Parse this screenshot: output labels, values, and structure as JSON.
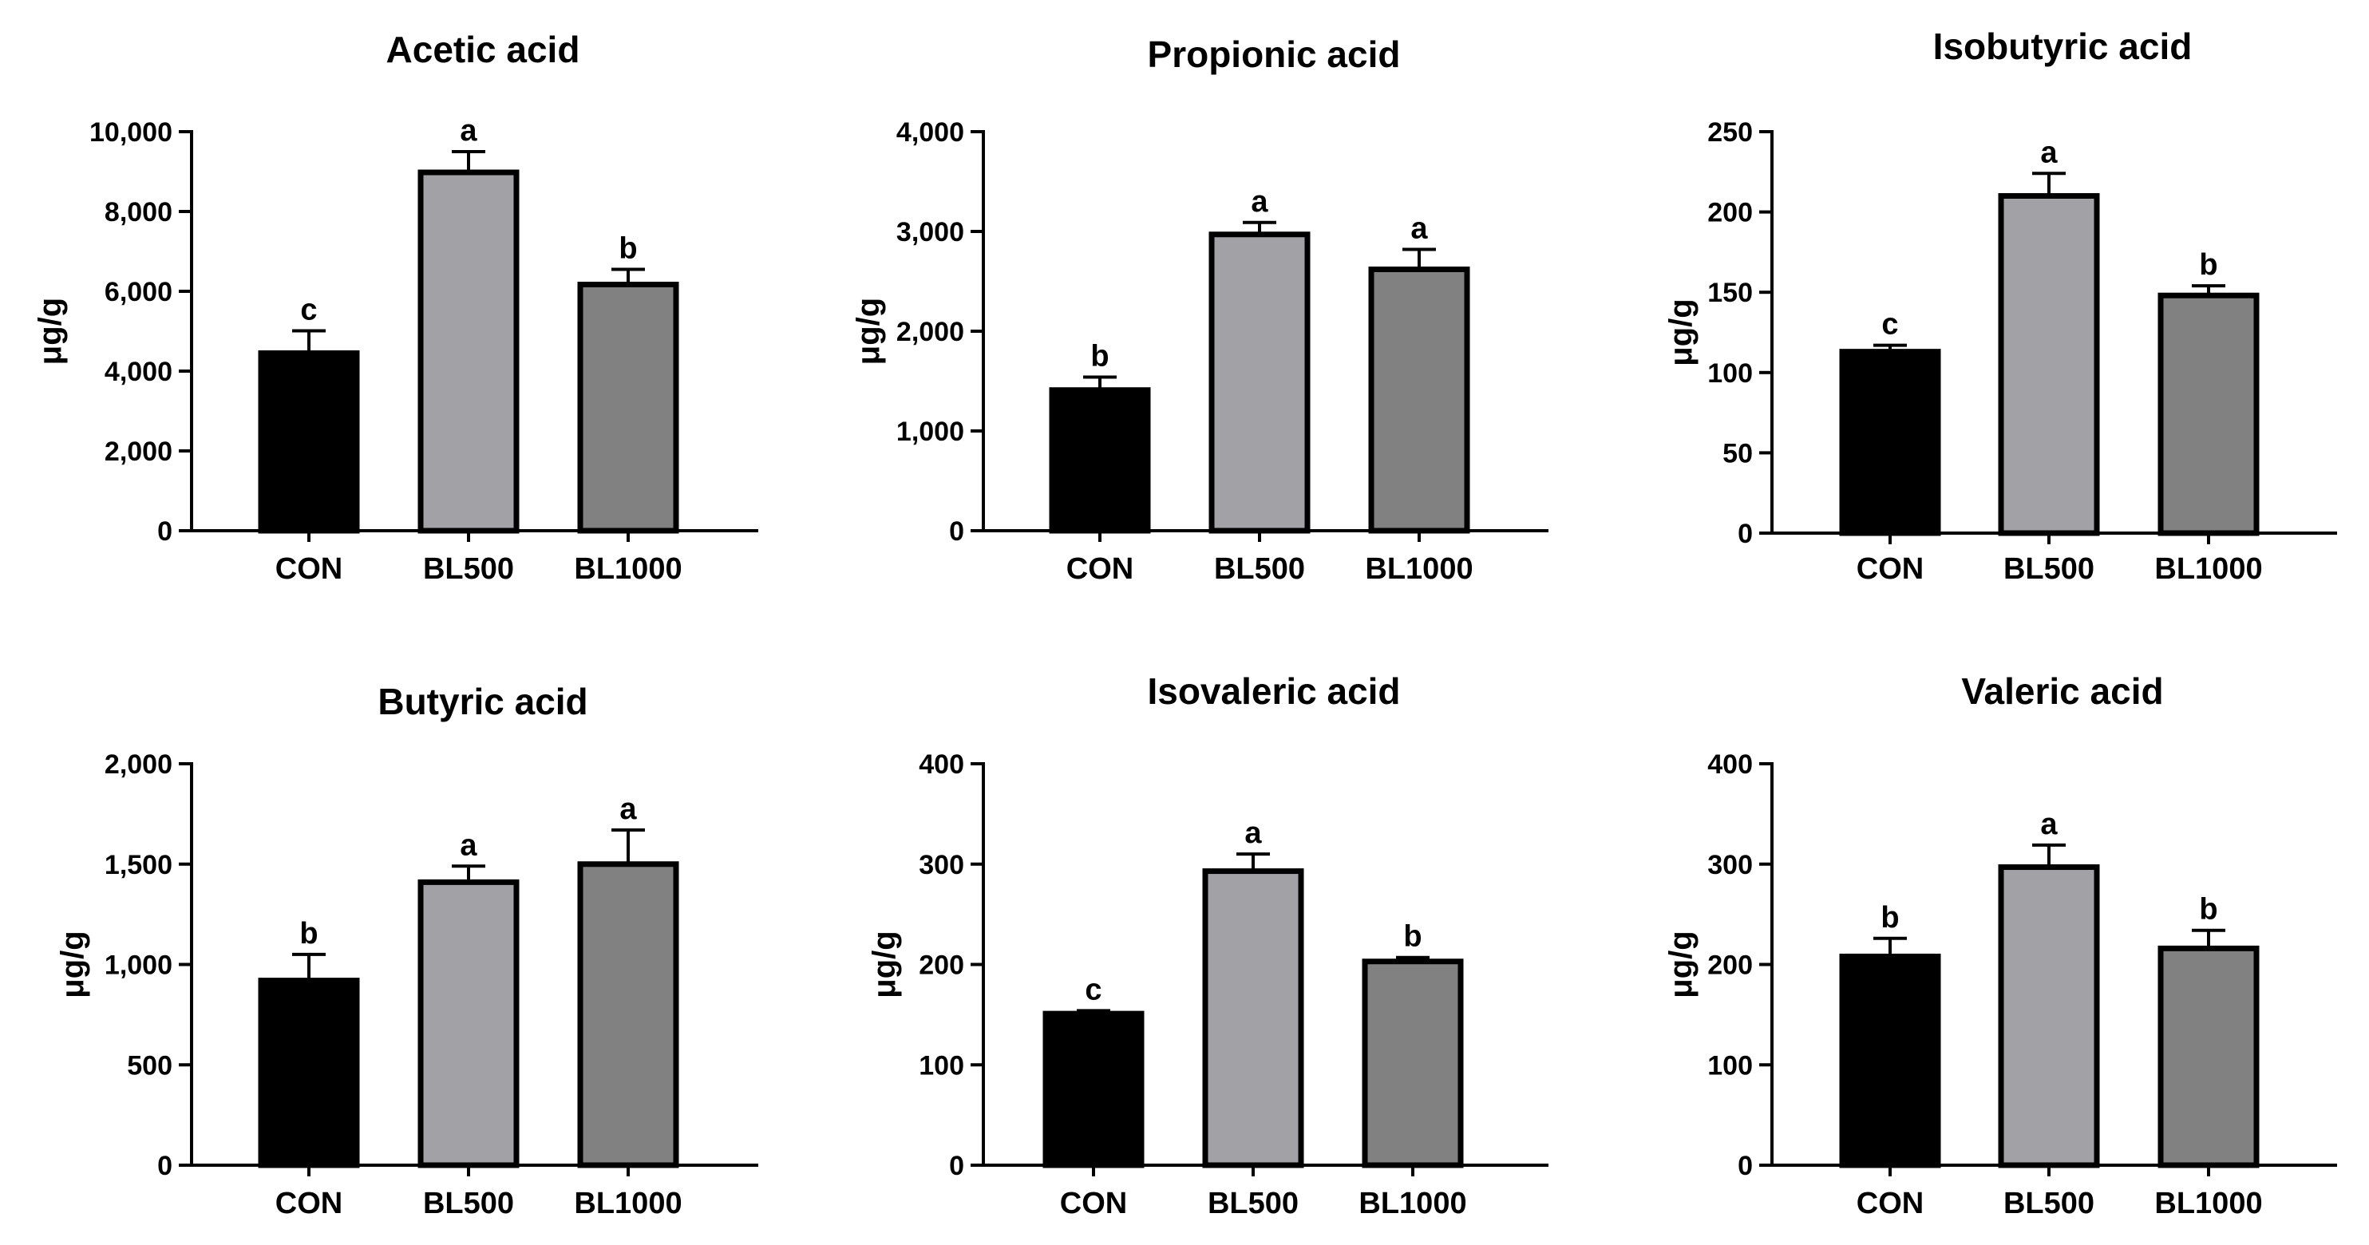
{
  "chart_data": [
    {
      "type": "bar",
      "title": "Acetic acid",
      "ylabel": "μg/g",
      "categories": [
        "CON",
        "BL500",
        "BL1000"
      ],
      "values": [
        4450,
        8980,
        6170
      ],
      "errors": [
        560,
        520,
        380
      ],
      "significance": [
        "c",
        "a",
        "b"
      ],
      "ylim": [
        0,
        10000
      ],
      "yticks": [
        0,
        2000,
        4000,
        6000,
        8000,
        10000
      ],
      "ytick_labels": [
        "0",
        "2,000",
        "4,000",
        "6,000",
        "8,000",
        "10,000"
      ],
      "bar_colors": [
        "#000000",
        "#a2a1a6",
        "#818181"
      ]
    },
    {
      "type": "bar",
      "title": "Propionic acid",
      "ylabel": "μg/g",
      "categories": [
        "CON",
        "BL500",
        "BL1000"
      ],
      "values": [
        1410,
        2970,
        2620
      ],
      "errors": [
        130,
        120,
        200
      ],
      "significance": [
        "b",
        "a",
        "a"
      ],
      "ylim": [
        0,
        4000
      ],
      "yticks": [
        0,
        1000,
        2000,
        3000,
        4000
      ],
      "ytick_labels": [
        "0",
        "1,000",
        "2,000",
        "3,000",
        "4,000"
      ],
      "bar_colors": [
        "#000000",
        "#a2a1a6",
        "#818181"
      ]
    },
    {
      "type": "bar",
      "title": "Isobutyric acid",
      "ylabel": "μg/g",
      "categories": [
        "CON",
        "BL500",
        "BL1000"
      ],
      "values": [
        113,
        210,
        148
      ],
      "errors": [
        4,
        14,
        6
      ],
      "significance": [
        "c",
        "a",
        "b"
      ],
      "ylim": [
        0,
        250
      ],
      "yticks": [
        0,
        50,
        100,
        150,
        200,
        250
      ],
      "ytick_labels": [
        "0",
        "50",
        "100",
        "150",
        "200",
        "250"
      ],
      "bar_colors": [
        "#000000",
        "#a2a1a6",
        "#818181"
      ]
    },
    {
      "type": "bar",
      "title": "Butyric acid",
      "ylabel": "μg/g",
      "categories": [
        "CON",
        "BL500",
        "BL1000"
      ],
      "values": [
        920,
        1410,
        1500
      ],
      "errors": [
        130,
        80,
        170
      ],
      "significance": [
        "b",
        "a",
        "a"
      ],
      "ylim": [
        0,
        2000
      ],
      "yticks": [
        0,
        500,
        1000,
        1500,
        2000
      ],
      "ytick_labels": [
        "0",
        "500",
        "1,000",
        "1,500",
        "2,000"
      ],
      "bar_colors": [
        "#000000",
        "#a2a1a6",
        "#818181"
      ]
    },
    {
      "type": "bar",
      "title": "Isovaleric acid",
      "ylabel": "μg/g",
      "categories": [
        "CON",
        "BL500",
        "BL1000"
      ],
      "values": [
        151,
        293,
        203
      ],
      "errors": [
        3,
        17,
        4
      ],
      "significance": [
        "c",
        "a",
        "b"
      ],
      "ylim": [
        0,
        400
      ],
      "yticks": [
        0,
        100,
        200,
        300,
        400
      ],
      "ytick_labels": [
        "0",
        "100",
        "200",
        "300",
        "400"
      ],
      "bar_colors": [
        "#000000",
        "#a2a1a6",
        "#818181"
      ]
    },
    {
      "type": "bar",
      "title": "Valeric acid",
      "ylabel": "μg/g",
      "categories": [
        "CON",
        "BL500",
        "BL1000"
      ],
      "values": [
        208,
        297,
        216
      ],
      "errors": [
        18,
        22,
        18
      ],
      "significance": [
        "b",
        "a",
        "b"
      ],
      "ylim": [
        0,
        400
      ],
      "yticks": [
        0,
        100,
        200,
        300,
        400
      ],
      "ytick_labels": [
        "0",
        "100",
        "200",
        "300",
        "400"
      ],
      "bar_colors": [
        "#000000",
        "#a2a1a6",
        "#818181"
      ]
    }
  ]
}
